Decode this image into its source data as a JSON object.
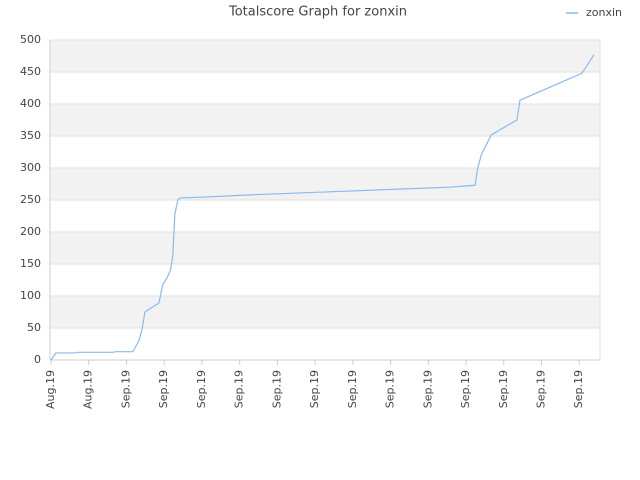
{
  "chart_data": {
    "type": "line",
    "title": "Totalscore Graph for zonxin",
    "x": [
      0,
      0.13,
      0.63,
      0.71,
      1.64,
      1.72,
      2.17,
      2.33,
      2.41,
      2.49,
      2.86,
      2.96,
      3.07,
      3.17,
      3.23,
      3.28,
      3.36,
      3.41,
      4.21,
      5.26,
      6.59,
      7.91,
      9.23,
      10.56,
      11.24,
      11.3,
      11.4,
      11.67,
      12.35,
      12.43,
      14.07,
      14.39
    ],
    "series": [
      {
        "name": "zonxin",
        "color": "#88bbee",
        "values": [
          0,
          11,
          11,
          12,
          12,
          13,
          13,
          30,
          47,
          75,
          89,
          117,
          128,
          141,
          164,
          227,
          250,
          253,
          255,
          258,
          261,
          264,
          267,
          270,
          273,
          297,
          320,
          352,
          375,
          406,
          448,
          477
        ]
      }
    ],
    "xlim": [
      0,
      14.55
    ],
    "xticks": [
      {
        "value": 0,
        "label": "Aug.19"
      },
      {
        "value": 1,
        "label": "Aug.19"
      },
      {
        "value": 2,
        "label": "Sep.19"
      },
      {
        "value": 3,
        "label": "Sep.19"
      },
      {
        "value": 4,
        "label": "Sep.19"
      },
      {
        "value": 5,
        "label": "Sep.19"
      },
      {
        "value": 6,
        "label": "Sep.19"
      },
      {
        "value": 7,
        "label": "Sep.19"
      },
      {
        "value": 8,
        "label": "Sep.19"
      },
      {
        "value": 9,
        "label": "Sep.19"
      },
      {
        "value": 10,
        "label": "Sep.19"
      },
      {
        "value": 11,
        "label": "Sep.19"
      },
      {
        "value": 12,
        "label": "Sep.19"
      },
      {
        "value": 13,
        "label": "Sep.19"
      },
      {
        "value": 14,
        "label": "Sep.19"
      }
    ],
    "ylim": [
      0,
      500
    ],
    "yticks": [
      0,
      50,
      100,
      150,
      200,
      250,
      300,
      350,
      400,
      450,
      500
    ],
    "grid": true,
    "legend": "top-right"
  }
}
